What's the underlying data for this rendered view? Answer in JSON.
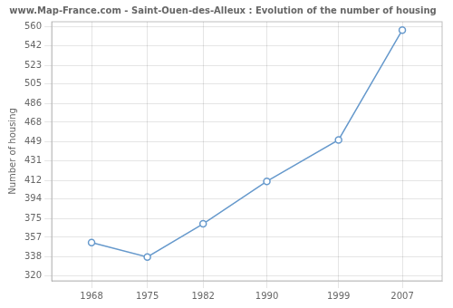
{
  "chart_data": {
    "type": "line",
    "title": "www.Map-France.com - Saint-Ouen-des-Alleux : Evolution of the number of housing",
    "ylabel": "Number of housing",
    "x": [
      1968,
      1975,
      1982,
      1990,
      1999,
      2007
    ],
    "values": [
      352,
      338,
      370,
      411,
      451,
      557
    ],
    "xlim": [
      1963,
      2012
    ],
    "xticks": [
      1968,
      1975,
      1982,
      1990,
      1999,
      2007
    ],
    "ylim": [
      315,
      565
    ],
    "yticks": [
      320,
      338,
      357,
      375,
      394,
      412,
      431,
      449,
      468,
      486,
      505,
      523,
      542,
      560
    ],
    "grid": true,
    "color": "#6699cc",
    "marker": "circle"
  }
}
